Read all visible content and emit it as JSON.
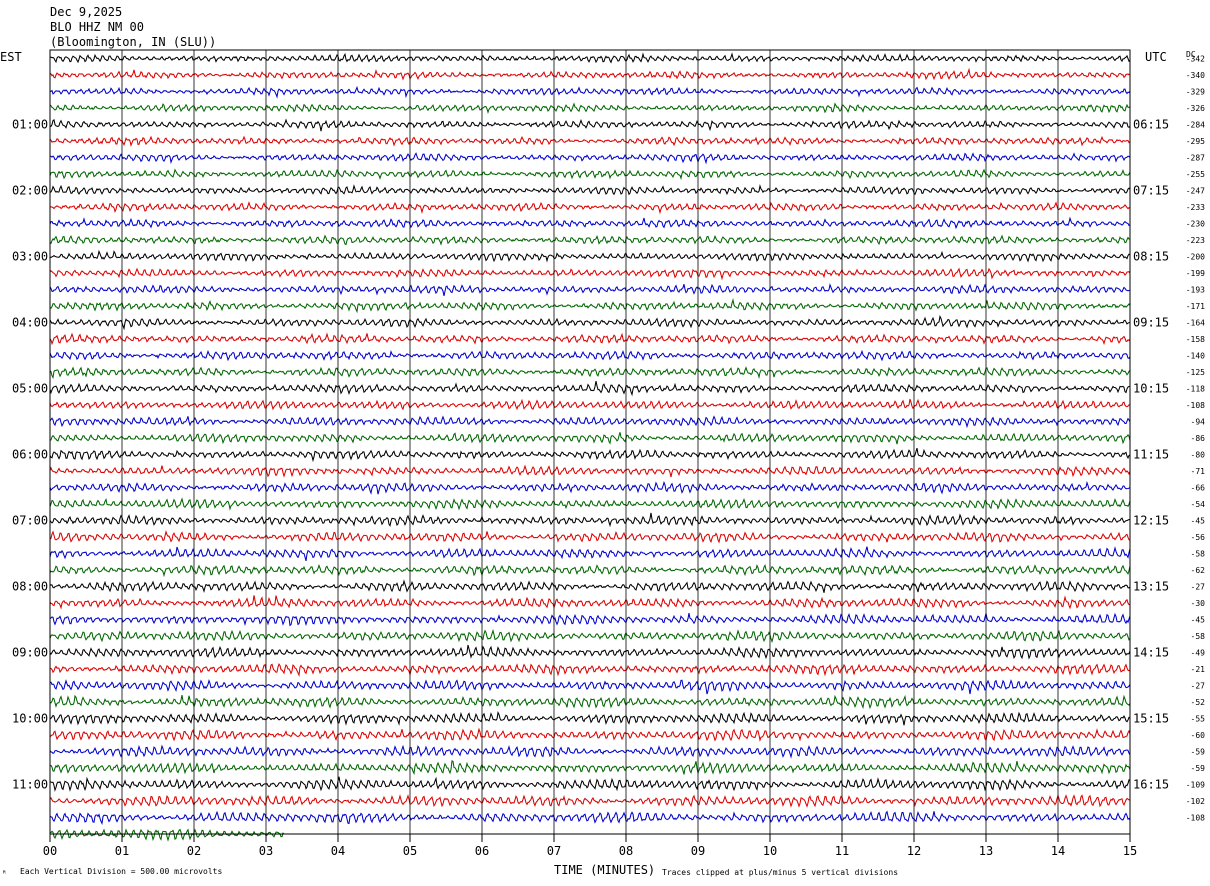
{
  "header": {
    "date": "Dec 9,2025",
    "station": "BLO HHZ NM 00",
    "location": "(Bloomington, IN (SLU))"
  },
  "left_tz": "EST",
  "right_tz": "UTC",
  "dc_header": "DC",
  "footer": {
    "division": "Each Vertical Division =  500.00 microvolts",
    "time_label": "TIME (MINUTES)",
    "clip_note": "Traces clipped at plus/minus 5 vertical divisions",
    "corner_mark": "ᴿ"
  },
  "colors": {
    "trace_cycle": [
      "#000000",
      "#dd0000",
      "#0000cc",
      "#006600"
    ],
    "grid": "#000000",
    "background": "#ffffff"
  },
  "chart_data": {
    "type": "line",
    "subtype": "helicorder",
    "xlabel": "TIME (MINUTES)",
    "x_ticks": [
      "00",
      "01",
      "02",
      "03",
      "04",
      "05",
      "06",
      "07",
      "08",
      "09",
      "10",
      "11",
      "12",
      "13",
      "14",
      "15"
    ],
    "xlim": [
      0,
      15
    ],
    "minutes_per_line": 15,
    "line_count": 48,
    "last_line_end_minute": 4.0,
    "last_line_flat_from_minute": 3.25,
    "left_hour_labels": [
      {
        "line": 4,
        "text": "01:00"
      },
      {
        "line": 8,
        "text": "02:00"
      },
      {
        "line": 12,
        "text": "03:00"
      },
      {
        "line": 16,
        "text": "04:00"
      },
      {
        "line": 20,
        "text": "05:00"
      },
      {
        "line": 24,
        "text": "06:00"
      },
      {
        "line": 28,
        "text": "07:00"
      },
      {
        "line": 32,
        "text": "08:00"
      },
      {
        "line": 36,
        "text": "09:00"
      },
      {
        "line": 40,
        "text": "10:00"
      },
      {
        "line": 44,
        "text": "11:00"
      }
    ],
    "right_hour_labels": [
      {
        "line": 4,
        "text": "06:15"
      },
      {
        "line": 8,
        "text": "07:15"
      },
      {
        "line": 12,
        "text": "08:15"
      },
      {
        "line": 16,
        "text": "09:15"
      },
      {
        "line": 20,
        "text": "10:15"
      },
      {
        "line": 24,
        "text": "11:15"
      },
      {
        "line": 28,
        "text": "12:15"
      },
      {
        "line": 32,
        "text": "13:15"
      },
      {
        "line": 36,
        "text": "14:15"
      },
      {
        "line": 40,
        "text": "15:15"
      },
      {
        "line": 44,
        "text": "16:15"
      }
    ],
    "dc_offsets": [
      "-342",
      "-340",
      "-329",
      "-326",
      "-284",
      "-295",
      "-287",
      "-255",
      "-247",
      "-233",
      "-230",
      "-223",
      "-200",
      "-199",
      "-193",
      "-171",
      "-164",
      "-158",
      "-140",
      "-125",
      "-118",
      "-108",
      "-94",
      "-86",
      "-80",
      "-71",
      "-66",
      "-54",
      "-45",
      "-56",
      "-58",
      "-62",
      "-27",
      "-30",
      "-45",
      "-58",
      "-49",
      "-21",
      "-27",
      "-52",
      "-55",
      "-60",
      "-59",
      "-59",
      "-109",
      "-102",
      "-108"
    ]
  }
}
